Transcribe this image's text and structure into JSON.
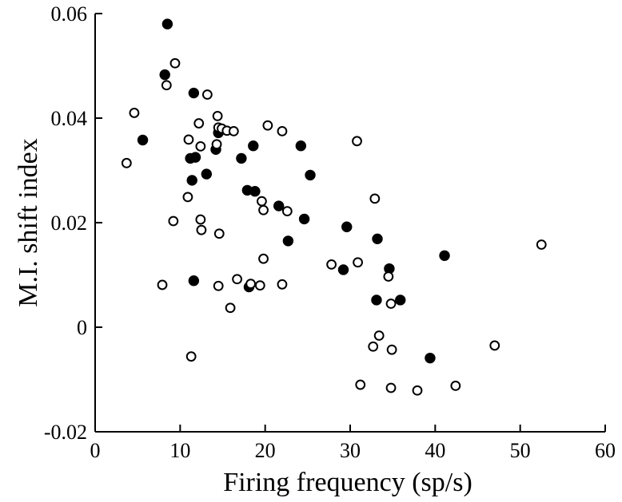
{
  "chart_data": {
    "type": "scatter",
    "title": "",
    "xlabel": "Firing frequency (sp/s)",
    "ylabel": "M.I. shift index",
    "xlim": [
      0,
      60
    ],
    "ylim": [
      -0.02,
      0.06
    ],
    "xticks": [
      0,
      10,
      20,
      30,
      40,
      50,
      60
    ],
    "yticks": [
      -0.02,
      0,
      0.02,
      0.04,
      0.06
    ],
    "xtick_labels": [
      "0",
      "10",
      "20",
      "30",
      "40",
      "50",
      "60"
    ],
    "ytick_labels": [
      "-0.02",
      "0",
      "0.02",
      "0.04",
      "0.06"
    ],
    "grid": false,
    "legend": "none",
    "series": [
      {
        "marker": "filled-circle",
        "color": "#000000",
        "points": [
          [
            8.5,
            0.058
          ],
          [
            8.2,
            0.0483
          ],
          [
            11.6,
            0.0448
          ],
          [
            5.6,
            0.0358
          ],
          [
            11.2,
            0.0323
          ],
          [
            11.8,
            0.0325
          ],
          [
            13.1,
            0.0293
          ],
          [
            11.4,
            0.0281
          ],
          [
            14.2,
            0.034
          ],
          [
            14.5,
            0.0372
          ],
          [
            17.2,
            0.0323
          ],
          [
            18.6,
            0.0347
          ],
          [
            24.2,
            0.0347
          ],
          [
            25.3,
            0.0291
          ],
          [
            17.9,
            0.0262
          ],
          [
            18.8,
            0.026
          ],
          [
            21.6,
            0.0232
          ],
          [
            24.6,
            0.0207
          ],
          [
            22.7,
            0.0165
          ],
          [
            29.6,
            0.0192
          ],
          [
            29.2,
            0.011
          ],
          [
            33.2,
            0.0169
          ],
          [
            34.6,
            0.0112
          ],
          [
            33.1,
            0.0052
          ],
          [
            35.9,
            0.0052
          ],
          [
            41.1,
            0.0137
          ],
          [
            39.4,
            -0.0059
          ],
          [
            11.6,
            0.0089
          ],
          [
            18.1,
            0.0077
          ]
        ]
      },
      {
        "marker": "open-circle",
        "color": "#000000",
        "points": [
          [
            9.4,
            0.0505
          ],
          [
            8.4,
            0.0463
          ],
          [
            13.2,
            0.0445
          ],
          [
            4.6,
            0.041
          ],
          [
            3.7,
            0.0314
          ],
          [
            11.0,
            0.0359
          ],
          [
            12.2,
            0.039
          ],
          [
            12.4,
            0.0346
          ],
          [
            14.4,
            0.0404
          ],
          [
            14.5,
            0.0382
          ],
          [
            14.9,
            0.038
          ],
          [
            15.5,
            0.0376
          ],
          [
            16.3,
            0.0375
          ],
          [
            14.3,
            0.035
          ],
          [
            10.9,
            0.0249
          ],
          [
            9.2,
            0.0203
          ],
          [
            12.4,
            0.0206
          ],
          [
            12.5,
            0.0186
          ],
          [
            14.6,
            0.0179
          ],
          [
            20.3,
            0.0386
          ],
          [
            22.0,
            0.0375
          ],
          [
            19.6,
            0.0241
          ],
          [
            19.8,
            0.0224
          ],
          [
            22.6,
            0.0222
          ],
          [
            30.8,
            0.0356
          ],
          [
            32.9,
            0.0246
          ],
          [
            19.8,
            0.0131
          ],
          [
            27.8,
            0.012
          ],
          [
            30.9,
            0.0124
          ],
          [
            7.9,
            0.0081
          ],
          [
            14.5,
            0.0079
          ],
          [
            16.7,
            0.0092
          ],
          [
            18.3,
            0.0083
          ],
          [
            19.4,
            0.008
          ],
          [
            22.0,
            0.0082
          ],
          [
            15.9,
            0.0037
          ],
          [
            34.5,
            0.0097
          ],
          [
            34.8,
            0.0045
          ],
          [
            33.4,
            -0.0016
          ],
          [
            32.7,
            -0.0037
          ],
          [
            34.9,
            -0.0043
          ],
          [
            11.3,
            -0.0056
          ],
          [
            31.2,
            -0.011
          ],
          [
            34.8,
            -0.0116
          ],
          [
            37.9,
            -0.0121
          ],
          [
            42.4,
            -0.0112
          ],
          [
            47.0,
            -0.0035
          ],
          [
            52.5,
            0.0158
          ]
        ]
      }
    ]
  }
}
